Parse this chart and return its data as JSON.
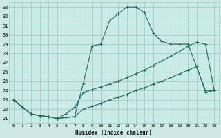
{
  "xlabel": "Humidex (Indice chaleur)",
  "bg_color": "#cce9e5",
  "grid_color": "#99d4ce",
  "line_color": "#1a6b5e",
  "xlim": [
    -0.5,
    23.5
  ],
  "ylim": [
    20.5,
    33.5
  ],
  "xticks": [
    0,
    1,
    2,
    3,
    4,
    5,
    6,
    7,
    8,
    9,
    10,
    11,
    12,
    13,
    14,
    15,
    16,
    17,
    18,
    19,
    20,
    21,
    22,
    23
  ],
  "yticks": [
    21,
    22,
    23,
    24,
    25,
    26,
    27,
    28,
    29,
    30,
    31,
    32,
    33
  ],
  "line1_x": [
    0,
    1,
    2,
    3,
    4,
    5,
    6,
    7,
    8,
    9,
    10,
    11,
    12,
    13,
    14,
    15,
    16,
    17,
    18,
    19,
    20,
    21,
    22,
    23
  ],
  "line1_y": [
    23.0,
    22.2,
    21.5,
    21.3,
    21.2,
    21.0,
    21.1,
    21.2,
    24.8,
    28.8,
    29.0,
    31.5,
    32.3,
    33.0,
    33.0,
    32.4,
    30.2,
    29.3,
    29.0,
    29.0,
    29.0,
    26.5,
    24.0,
    24.0
  ],
  "line2_x": [
    0,
    1,
    2,
    3,
    4,
    5,
    6,
    7,
    8,
    9,
    10,
    11,
    12,
    13,
    14,
    15,
    16,
    17,
    18,
    19,
    20,
    21,
    22,
    23
  ],
  "line2_y": [
    23.0,
    22.2,
    21.5,
    21.3,
    21.2,
    21.0,
    21.5,
    22.2,
    23.8,
    24.1,
    24.4,
    24.7,
    25.0,
    25.4,
    25.8,
    26.2,
    26.7,
    27.2,
    27.7,
    28.2,
    28.8,
    29.2,
    29.0,
    24.0
  ],
  "line3_x": [
    0,
    1,
    2,
    3,
    4,
    5,
    6,
    7,
    8,
    9,
    10,
    11,
    12,
    13,
    14,
    15,
    16,
    17,
    18,
    19,
    20,
    21,
    22,
    23
  ],
  "line3_y": [
    23.0,
    22.2,
    21.5,
    21.3,
    21.2,
    21.0,
    21.1,
    21.2,
    22.0,
    22.3,
    22.6,
    23.0,
    23.3,
    23.6,
    24.0,
    24.3,
    24.7,
    25.0,
    25.4,
    25.8,
    26.2,
    26.6,
    23.8,
    24.0
  ]
}
